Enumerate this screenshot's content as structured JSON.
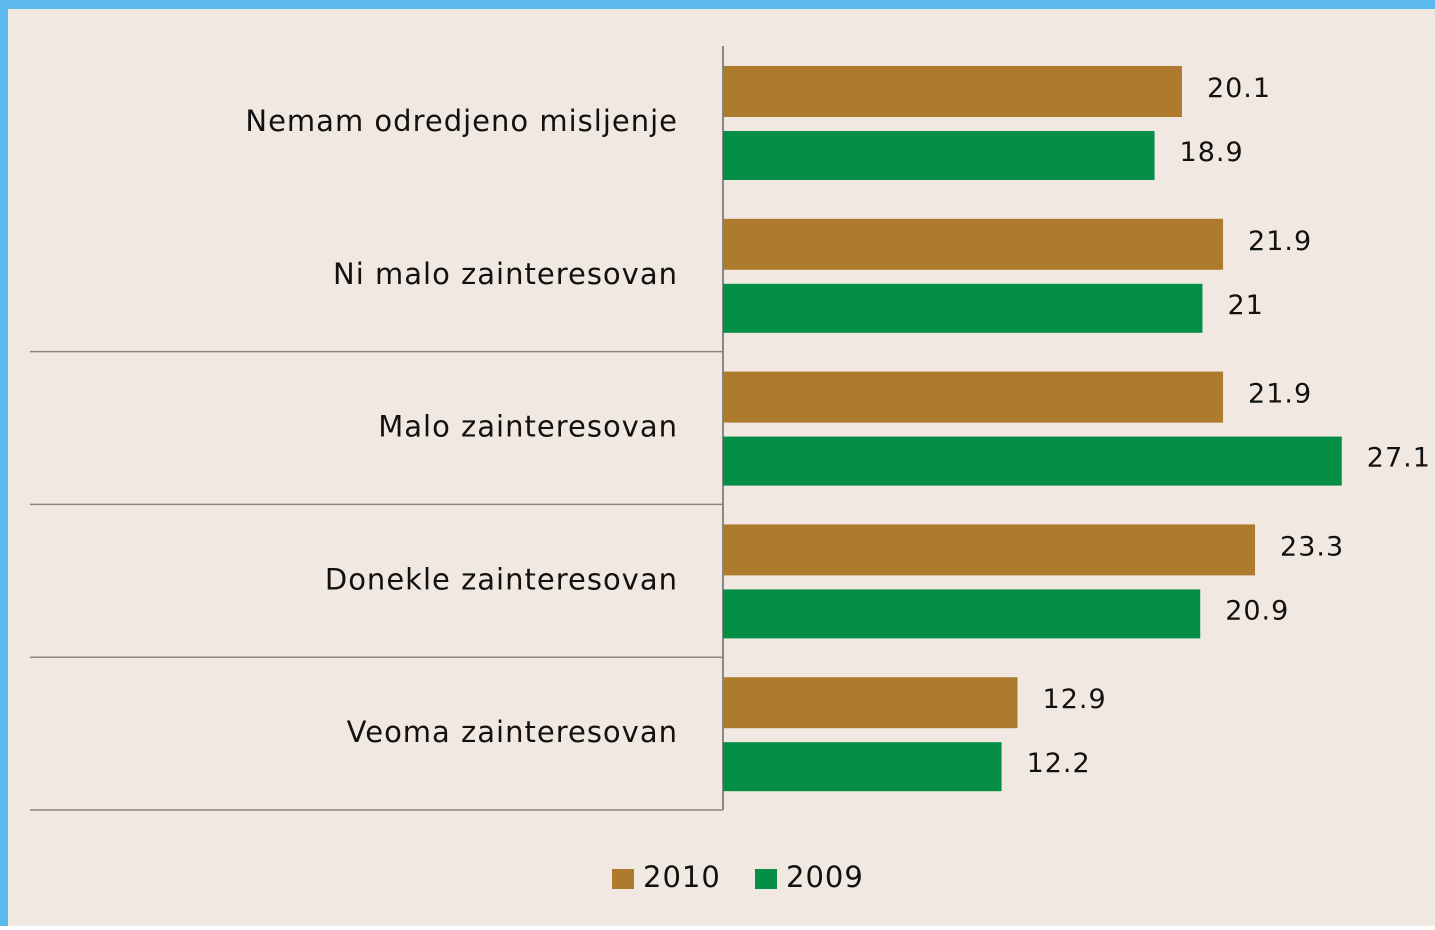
{
  "chart_data": {
    "type": "bar",
    "orientation": "horizontal",
    "categories": [
      "Nemam odredjeno misljenje",
      "Ni malo zainteresovan",
      "Malo zainteresovan",
      "Donekle zainteresovan",
      "Veoma zainteresovan"
    ],
    "series": [
      {
        "name": "2010",
        "color": "#ae7a2e",
        "values": [
          20.1,
          21.9,
          21.9,
          23.3,
          12.9
        ]
      },
      {
        "name": "2009",
        "color": "#048e46",
        "values": [
          18.9,
          21,
          27.1,
          20.9,
          12.2
        ]
      }
    ],
    "xlim": [
      0,
      30
    ]
  }
}
